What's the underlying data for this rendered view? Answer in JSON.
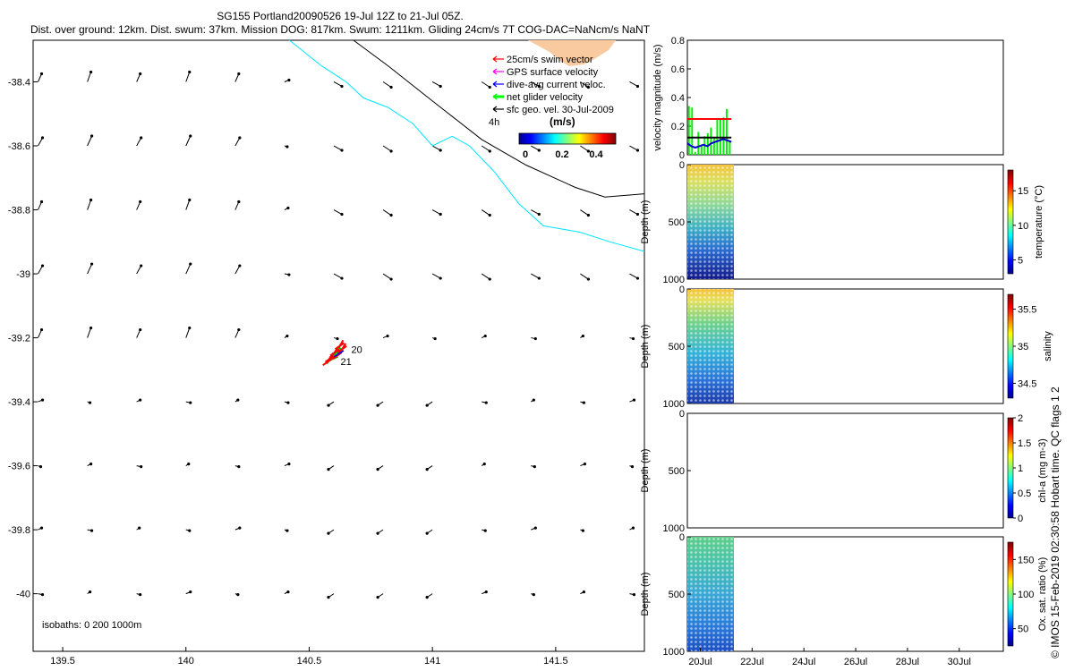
{
  "header": {
    "title": "SG155 Portland20090526 19-Jul 12Z to 21-Jul 05Z.",
    "subtitle": "Dist. over ground: 12km. Dist. swum: 37km. Mission DOG: 817km. Swum: 1211km. Gliding 24cm/s 7T COG-DAC=NaNcm/s NaNT"
  },
  "legend": {
    "items": [
      {
        "label": "25cm/s swim vector",
        "color": "#ff0000"
      },
      {
        "label": "GPS surface velocity",
        "color": "#ff00ff"
      },
      {
        "label": "dive-avg current veloc.",
        "color": "#0000ff"
      },
      {
        "label": "net glider velocity",
        "color": "#00ff00"
      },
      {
        "label": "sfc geo. vel. 30-Jul-2009",
        "color": "#000000"
      }
    ],
    "annotation": "4h",
    "colorbar_title": "(m/s)",
    "colorbar_ticks": [
      "0",
      "0.2",
      "0.4"
    ]
  },
  "map_labels": {
    "isobaths": "isobaths: 0   200   1000m",
    "track_start": "20",
    "track_end": "21"
  },
  "panels": {
    "velocity_ylabel": "velocity magnitude (m/s)",
    "depth_label": "Depth (m)",
    "colorbar_labels": [
      "temperature (°C)",
      "salinity",
      "chl-a (mg m-3)",
      "Ox. sat. ratio (%)"
    ],
    "credit": "© IMOS 15-Feb-2019 02:30:58 Hobart time. QC flags 1  2"
  },
  "chart_data": [
    {
      "type": "scatter",
      "name": "map",
      "xlim": [
        139.38,
        141.86
      ],
      "ylim": [
        -40.18,
        -38.27
      ],
      "x_ticks": [
        139.5,
        140,
        140.5,
        141,
        141.5
      ],
      "x_tick_labels": [
        "139.5",
        "140",
        "140.5",
        "141",
        "141.5"
      ],
      "y_ticks": [
        -38.4,
        -38.6,
        -38.8,
        -39,
        -39.2,
        -39.4,
        -39.6,
        -39.8,
        -40
      ],
      "y_tick_labels": [
        "-38.4",
        "-38.6",
        "-38.8",
        "-39",
        "-39.2",
        "-39.4",
        "-39.6",
        "-39.8",
        "-40"
      ],
      "vector_grid_lons": [
        139.4,
        139.6,
        139.8,
        140.0,
        140.2,
        140.4,
        140.6,
        140.8,
        141.0,
        141.2,
        141.4,
        141.6,
        141.8
      ],
      "vector_grid_lats": [
        -38.4,
        -38.6,
        -38.8,
        -39.0,
        -39.2,
        -39.4,
        -39.6,
        -39.8,
        -40.0
      ],
      "coast_black": [
        [
          140.68,
          -38.27
        ],
        [
          140.82,
          -38.35
        ],
        [
          141.0,
          -38.46
        ],
        [
          141.2,
          -38.58
        ],
        [
          141.38,
          -38.66
        ],
        [
          141.58,
          -38.73
        ],
        [
          141.7,
          -38.76
        ],
        [
          141.86,
          -38.75
        ]
      ],
      "coast_cyan": [
        [
          140.42,
          -38.27
        ],
        [
          140.55,
          -38.35
        ],
        [
          140.65,
          -38.4
        ],
        [
          140.72,
          -38.45
        ],
        [
          140.82,
          -38.48
        ],
        [
          140.92,
          -38.53
        ],
        [
          141.0,
          -38.6
        ],
        [
          141.08,
          -38.57
        ],
        [
          141.15,
          -38.6
        ],
        [
          141.25,
          -38.68
        ],
        [
          141.35,
          -38.78
        ],
        [
          141.45,
          -38.85
        ],
        [
          141.6,
          -38.87
        ],
        [
          141.72,
          -38.9
        ],
        [
          141.86,
          -38.93
        ]
      ],
      "track": [
        [
          140.62,
          -39.23
        ],
        [
          140.63,
          -39.24
        ],
        [
          140.6,
          -39.25
        ],
        [
          140.61,
          -39.26
        ],
        [
          140.58,
          -39.27
        ],
        [
          140.57,
          -39.28
        ]
      ]
    },
    {
      "type": "line",
      "name": "velocity",
      "x_range": [
        19.5,
        31.7
      ],
      "ylim": [
        0,
        0.8
      ],
      "y_ticks": [
        0,
        0.2,
        0.4,
        0.6,
        0.8
      ],
      "y_tick_labels": [
        "0",
        "0.2",
        "0.4",
        "0.6",
        "0.8"
      ],
      "x_ticks": [
        20,
        22,
        24,
        26,
        28,
        30
      ],
      "x_tick_labels": [
        "20Jul",
        "22Jul",
        "24Jul",
        "26Jul",
        "28Jul",
        "30Jul"
      ],
      "net_velocity_bars": [
        0.34,
        0.33,
        0.02,
        0.16,
        0.06,
        0.13,
        0.15,
        0.19,
        0.12,
        0.25,
        0.25,
        0.26,
        0.32,
        0.09
      ],
      "swim_vector_level": 0.25,
      "dive_avg_current": [
        0.08,
        0.06,
        0.05,
        0.06,
        0.07,
        0.06,
        0.08,
        0.09,
        0.1,
        0.11,
        0.1,
        0.09
      ],
      "glider_heading_level": 0.12
    },
    {
      "type": "heatmap",
      "name": "temperature",
      "depth_range": [
        0,
        1000
      ],
      "y_ticks": [
        0,
        500,
        1000
      ],
      "colorbar_range": [
        3,
        18
      ],
      "colorbar_ticks": [
        5,
        10,
        15
      ]
    },
    {
      "type": "heatmap",
      "name": "salinity",
      "depth_range": [
        0,
        1000
      ],
      "y_ticks": [
        0,
        500,
        1000
      ],
      "colorbar_range": [
        34.3,
        35.7
      ],
      "colorbar_ticks": [
        34.5,
        35,
        35.5
      ]
    },
    {
      "type": "heatmap",
      "name": "chl-a",
      "depth_range": [
        0,
        1000
      ],
      "y_ticks": [
        0,
        500,
        1000
      ],
      "colorbar_range": [
        0,
        2
      ],
      "colorbar_ticks": [
        0,
        0.5,
        1,
        1.5,
        2
      ]
    },
    {
      "type": "heatmap",
      "name": "oxygen",
      "depth_range": [
        0,
        1000
      ],
      "y_ticks": [
        0,
        500,
        1000
      ],
      "colorbar_range": [
        25,
        175
      ],
      "colorbar_ticks": [
        50,
        100,
        150
      ]
    }
  ]
}
